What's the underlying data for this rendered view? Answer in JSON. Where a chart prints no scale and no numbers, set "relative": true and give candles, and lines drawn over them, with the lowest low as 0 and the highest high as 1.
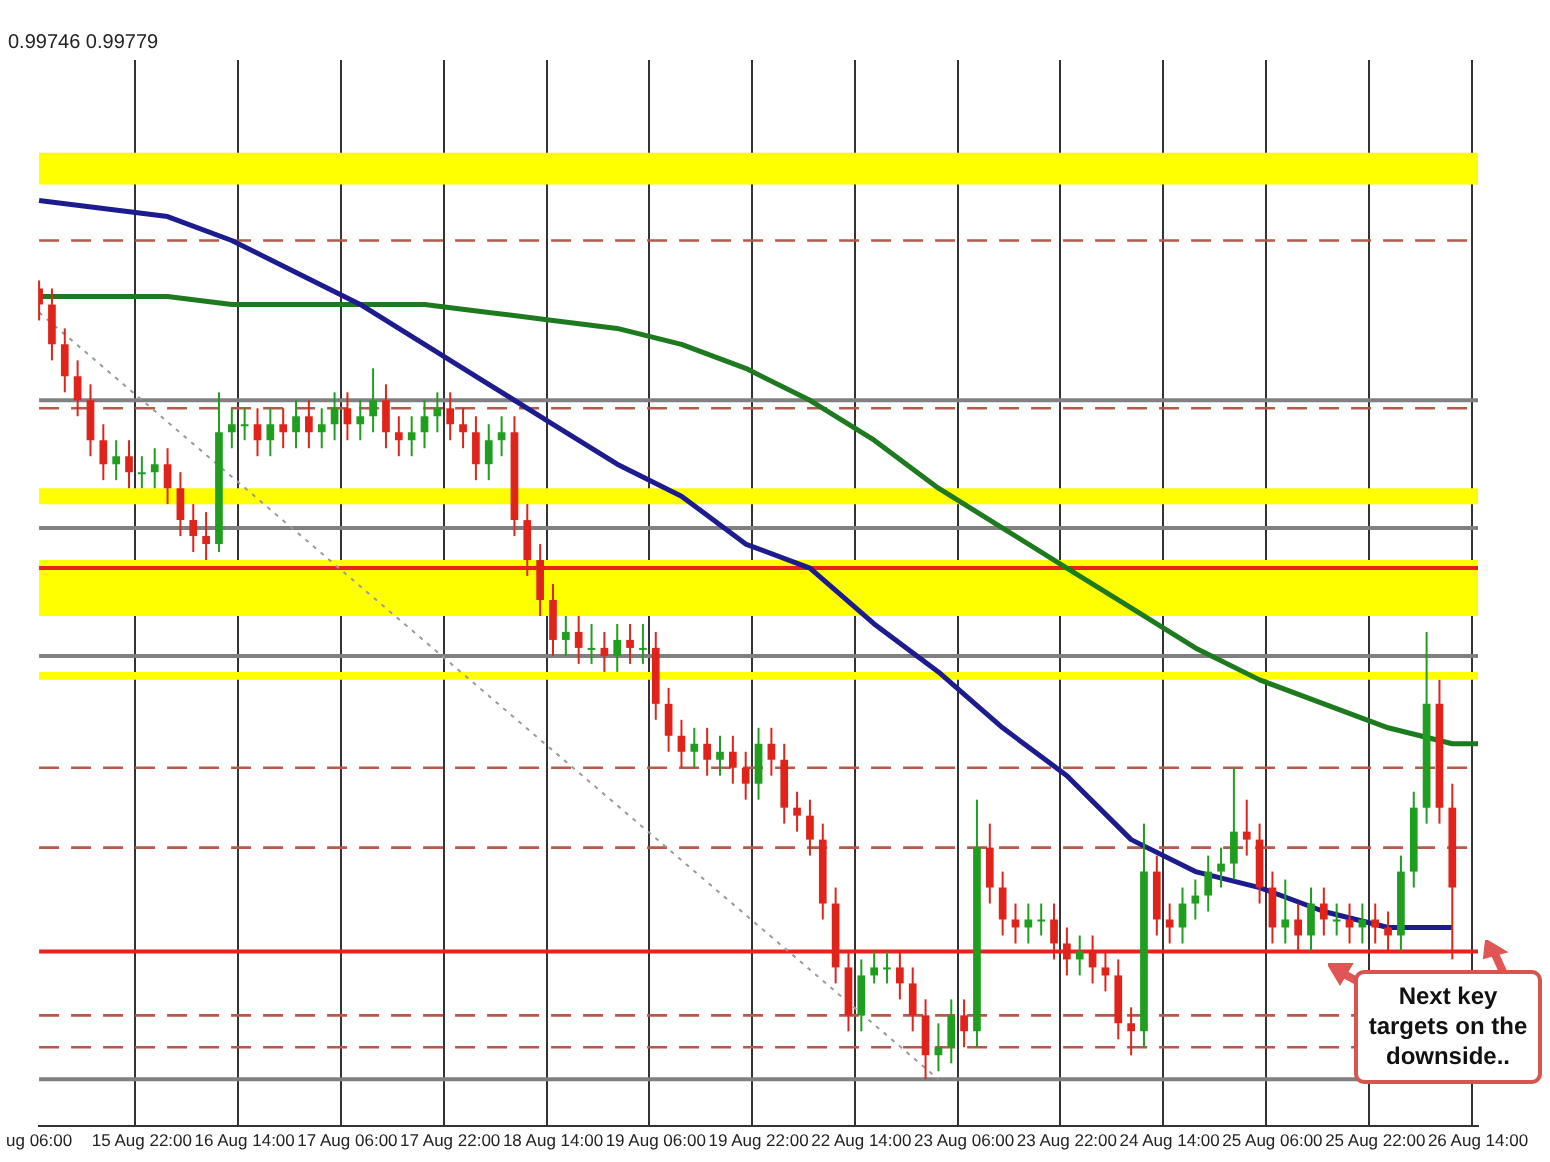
{
  "chart_data": {
    "type": "candlestick",
    "relative": true,
    "grid": "x",
    "legend": false,
    "tick_labels": "x",
    "marker": "none",
    "categories": [
      "ug 06:00",
      null,
      null,
      null,
      null,
      null,
      null,
      null,
      "15 Aug 22:00",
      null,
      null,
      null,
      null,
      null,
      null,
      null,
      "16 Aug 14:00",
      null,
      null,
      null,
      null,
      null,
      null,
      null,
      "17 Aug 06:00",
      null,
      null,
      null,
      null,
      null,
      null,
      null,
      "17 Aug 22:00",
      null,
      null,
      null,
      null,
      null,
      null,
      null,
      "18 Aug 14:00",
      null,
      null,
      null,
      null,
      null,
      null,
      null,
      "19 Aug 06:00",
      null,
      null,
      null,
      null,
      null,
      null,
      null,
      "19 Aug 22:00",
      null,
      null,
      null,
      null,
      null,
      null,
      null,
      "22 Aug 14:00",
      null,
      null,
      null,
      null,
      null,
      null,
      null,
      "23 Aug 06:00",
      null,
      null,
      null,
      null,
      null,
      null,
      null,
      "23 Aug 22:00",
      null,
      null,
      null,
      null,
      null,
      null,
      null,
      "24 Aug 14:00",
      null,
      null,
      null,
      null,
      null,
      null,
      null,
      "25 Aug 06:00",
      null,
      null,
      null,
      null,
      null,
      null,
      null,
      "25 Aug 22:00",
      null,
      null,
      null,
      null,
      null,
      null,
      null,
      "26 Aug 14:00"
    ],
    "ohlc": [
      [
        0.99,
        1.0,
        0.95,
        0.97
      ],
      [
        0.97,
        0.99,
        0.9,
        0.92
      ],
      [
        0.92,
        0.94,
        0.86,
        0.88
      ],
      [
        0.88,
        0.9,
        0.83,
        0.85
      ],
      [
        0.85,
        0.87,
        0.78,
        0.8
      ],
      [
        0.8,
        0.82,
        0.75,
        0.77
      ],
      [
        0.77,
        0.8,
        0.75,
        0.78
      ],
      [
        0.78,
        0.8,
        0.74,
        0.76
      ],
      [
        0.76,
        0.78,
        0.74,
        0.76
      ],
      [
        0.76,
        0.79,
        0.74,
        0.77
      ],
      [
        0.77,
        0.79,
        0.72,
        0.74
      ],
      [
        0.74,
        0.76,
        0.68,
        0.7
      ],
      [
        0.7,
        0.72,
        0.66,
        0.68
      ],
      [
        0.68,
        0.71,
        0.65,
        0.67
      ],
      [
        0.67,
        0.86,
        0.66,
        0.81
      ],
      [
        0.81,
        0.84,
        0.79,
        0.82
      ],
      [
        0.82,
        0.84,
        0.8,
        0.82
      ],
      [
        0.82,
        0.84,
        0.78,
        0.8
      ],
      [
        0.8,
        0.84,
        0.78,
        0.82
      ],
      [
        0.82,
        0.84,
        0.79,
        0.81
      ],
      [
        0.81,
        0.85,
        0.79,
        0.83
      ],
      [
        0.83,
        0.85,
        0.79,
        0.81
      ],
      [
        0.81,
        0.84,
        0.79,
        0.82
      ],
      [
        0.82,
        0.86,
        0.8,
        0.84
      ],
      [
        0.84,
        0.86,
        0.8,
        0.82
      ],
      [
        0.82,
        0.85,
        0.8,
        0.83
      ],
      [
        0.83,
        0.89,
        0.81,
        0.85
      ],
      [
        0.85,
        0.87,
        0.79,
        0.81
      ],
      [
        0.81,
        0.83,
        0.78,
        0.8
      ],
      [
        0.8,
        0.83,
        0.78,
        0.81
      ],
      [
        0.81,
        0.85,
        0.79,
        0.83
      ],
      [
        0.83,
        0.86,
        0.81,
        0.84
      ],
      [
        0.84,
        0.86,
        0.8,
        0.82
      ],
      [
        0.82,
        0.84,
        0.79,
        0.81
      ],
      [
        0.81,
        0.83,
        0.75,
        0.77
      ],
      [
        0.77,
        0.82,
        0.75,
        0.8
      ],
      [
        0.8,
        0.83,
        0.78,
        0.81
      ],
      [
        0.81,
        0.83,
        0.68,
        0.7
      ],
      [
        0.7,
        0.72,
        0.63,
        0.65
      ],
      [
        0.65,
        0.67,
        0.58,
        0.6
      ],
      [
        0.6,
        0.62,
        0.53,
        0.55
      ],
      [
        0.55,
        0.58,
        0.53,
        0.56
      ],
      [
        0.56,
        0.58,
        0.52,
        0.54
      ],
      [
        0.54,
        0.57,
        0.52,
        0.54
      ],
      [
        0.54,
        0.56,
        0.51,
        0.53
      ],
      [
        0.53,
        0.57,
        0.51,
        0.55
      ],
      [
        0.55,
        0.57,
        0.52,
        0.54
      ],
      [
        0.54,
        0.57,
        0.52,
        0.54
      ],
      [
        0.54,
        0.56,
        0.45,
        0.47
      ],
      [
        0.47,
        0.49,
        0.41,
        0.43
      ],
      [
        0.43,
        0.45,
        0.39,
        0.41
      ],
      [
        0.41,
        0.44,
        0.39,
        0.42
      ],
      [
        0.42,
        0.44,
        0.38,
        0.4
      ],
      [
        0.4,
        0.43,
        0.38,
        0.41
      ],
      [
        0.41,
        0.43,
        0.37,
        0.39
      ],
      [
        0.39,
        0.41,
        0.35,
        0.37
      ],
      [
        0.37,
        0.44,
        0.35,
        0.42
      ],
      [
        0.42,
        0.44,
        0.38,
        0.4
      ],
      [
        0.4,
        0.42,
        0.32,
        0.34
      ],
      [
        0.34,
        0.36,
        0.31,
        0.33
      ],
      [
        0.33,
        0.35,
        0.28,
        0.3
      ],
      [
        0.3,
        0.32,
        0.2,
        0.22
      ],
      [
        0.22,
        0.24,
        0.12,
        0.14
      ],
      [
        0.14,
        0.16,
        0.06,
        0.08
      ],
      [
        0.08,
        0.15,
        0.06,
        0.13
      ],
      [
        0.13,
        0.16,
        0.12,
        0.14
      ],
      [
        0.14,
        0.16,
        0.12,
        0.14
      ],
      [
        0.14,
        0.16,
        0.1,
        0.12
      ],
      [
        0.12,
        0.14,
        0.06,
        0.08
      ],
      [
        0.08,
        0.1,
        0.0,
        0.03
      ],
      [
        0.03,
        0.07,
        0.01,
        0.04
      ],
      [
        0.04,
        0.1,
        0.02,
        0.08
      ],
      [
        0.08,
        0.1,
        0.04,
        0.06
      ],
      [
        0.06,
        0.35,
        0.04,
        0.29
      ],
      [
        0.29,
        0.32,
        0.22,
        0.24
      ],
      [
        0.24,
        0.26,
        0.18,
        0.2
      ],
      [
        0.2,
        0.22,
        0.17,
        0.19
      ],
      [
        0.19,
        0.22,
        0.17,
        0.2
      ],
      [
        0.2,
        0.22,
        0.18,
        0.2
      ],
      [
        0.2,
        0.22,
        0.15,
        0.17
      ],
      [
        0.17,
        0.19,
        0.13,
        0.15
      ],
      [
        0.15,
        0.18,
        0.13,
        0.16
      ],
      [
        0.16,
        0.18,
        0.12,
        0.14
      ],
      [
        0.14,
        0.16,
        0.11,
        0.13
      ],
      [
        0.13,
        0.15,
        0.05,
        0.07
      ],
      [
        0.07,
        0.09,
        0.03,
        0.06
      ],
      [
        0.06,
        0.32,
        0.04,
        0.26
      ],
      [
        0.26,
        0.28,
        0.18,
        0.2
      ],
      [
        0.2,
        0.22,
        0.17,
        0.19
      ],
      [
        0.19,
        0.24,
        0.17,
        0.22
      ],
      [
        0.22,
        0.25,
        0.2,
        0.23
      ],
      [
        0.23,
        0.28,
        0.21,
        0.26
      ],
      [
        0.26,
        0.29,
        0.24,
        0.27
      ],
      [
        0.27,
        0.39,
        0.25,
        0.31
      ],
      [
        0.31,
        0.35,
        0.28,
        0.3
      ],
      [
        0.3,
        0.32,
        0.22,
        0.24
      ],
      [
        0.24,
        0.26,
        0.17,
        0.19
      ],
      [
        0.19,
        0.25,
        0.17,
        0.2
      ],
      [
        0.2,
        0.22,
        0.16,
        0.18
      ],
      [
        0.18,
        0.24,
        0.16,
        0.22
      ],
      [
        0.22,
        0.24,
        0.18,
        0.2
      ],
      [
        0.2,
        0.22,
        0.18,
        0.2
      ],
      [
        0.2,
        0.22,
        0.17,
        0.19
      ],
      [
        0.19,
        0.22,
        0.17,
        0.2
      ],
      [
        0.2,
        0.22,
        0.17,
        0.19
      ],
      [
        0.19,
        0.21,
        0.16,
        0.18
      ],
      [
        0.18,
        0.28,
        0.16,
        0.26
      ],
      [
        0.26,
        0.36,
        0.24,
        0.34
      ],
      [
        0.34,
        0.56,
        0.32,
        0.47
      ],
      [
        0.47,
        0.5,
        0.32,
        0.34
      ],
      [
        0.34,
        0.37,
        0.15,
        0.24
      ],
      null,
      null
    ],
    "series": [
      {
        "type": "line",
        "color": "#1c1c8f",
        "values": [
          1.1,
          null,
          null,
          null,
          null,
          1.09,
          null,
          null,
          null,
          null,
          1.08,
          null,
          null,
          null,
          null,
          1.05,
          null,
          null,
          null,
          null,
          1.01,
          null,
          null,
          null,
          null,
          0.97,
          null,
          null,
          null,
          null,
          0.92,
          null,
          null,
          null,
          null,
          0.87,
          null,
          null,
          null,
          null,
          0.82,
          null,
          null,
          null,
          null,
          0.77,
          null,
          null,
          null,
          null,
          0.73,
          null,
          null,
          null,
          null,
          0.67,
          null,
          null,
          null,
          null,
          0.64,
          null,
          null,
          null,
          null,
          0.57,
          null,
          null,
          null,
          null,
          0.51,
          null,
          null,
          null,
          null,
          0.44,
          null,
          null,
          null,
          null,
          0.38,
          null,
          null,
          null,
          null,
          0.3,
          null,
          null,
          null,
          null,
          0.26,
          null,
          null,
          null,
          null,
          0.24,
          null,
          null,
          null,
          null,
          0.21,
          null,
          null,
          null,
          null,
          0.19,
          null,
          null,
          null,
          null,
          0.19,
          null,
          null
        ]
      },
      {
        "type": "line",
        "color": "#1e7a1e",
        "values": [
          0.98,
          null,
          null,
          null,
          null,
          0.98,
          null,
          null,
          null,
          null,
          0.98,
          null,
          null,
          null,
          null,
          0.97,
          null,
          null,
          null,
          null,
          0.97,
          null,
          null,
          null,
          null,
          0.97,
          null,
          null,
          null,
          null,
          0.97,
          null,
          null,
          null,
          null,
          0.96,
          null,
          null,
          null,
          null,
          0.95,
          null,
          null,
          null,
          null,
          0.94,
          null,
          null,
          null,
          null,
          0.92,
          null,
          null,
          null,
          null,
          0.89,
          null,
          null,
          null,
          null,
          0.85,
          null,
          null,
          null,
          null,
          0.8,
          null,
          null,
          null,
          null,
          0.74,
          null,
          null,
          null,
          null,
          0.69,
          null,
          null,
          null,
          null,
          0.64,
          null,
          null,
          null,
          null,
          0.59,
          null,
          null,
          null,
          null,
          0.54,
          null,
          null,
          null,
          null,
          0.5,
          null,
          null,
          null,
          null,
          0.47,
          null,
          null,
          null,
          null,
          0.44,
          null,
          null,
          null,
          null,
          0.42,
          null,
          0.42
        ]
      },
      {
        "type": "line",
        "color": "#9a9a9a",
        "line_style": "dotted",
        "values": [
          0.96,
          null,
          null,
          null,
          null,
          null,
          null,
          null,
          null,
          null,
          null,
          null,
          null,
          null,
          null,
          null,
          null,
          null,
          null,
          null,
          null,
          null,
          null,
          null,
          null,
          null,
          null,
          null,
          null,
          null,
          null,
          null,
          null,
          null,
          null,
          null,
          null,
          null,
          null,
          null,
          null,
          null,
          null,
          null,
          null,
          null,
          null,
          null,
          null,
          null,
          null,
          null,
          null,
          null,
          null,
          null,
          null,
          null,
          null,
          null,
          null,
          null,
          null,
          null,
          null,
          null,
          null,
          null,
          null,
          null,
          0.0,
          null,
          null,
          null,
          null,
          null,
          null,
          null,
          null,
          null,
          null,
          null,
          null,
          null,
          null,
          null,
          null,
          null,
          null,
          null,
          null,
          null,
          null,
          null,
          null,
          null,
          null,
          null,
          null,
          null,
          null,
          null,
          null,
          null,
          null,
          null,
          null,
          null,
          null,
          null,
          null,
          null,
          null
        ]
      }
    ],
    "bands": [
      {
        "axis": "y",
        "from": 1.12,
        "to": 1.16,
        "color": "#ffff00"
      },
      {
        "axis": "y",
        "from": 0.72,
        "to": 0.74,
        "color": "#ffff00"
      },
      {
        "axis": "y",
        "from": 0.58,
        "to": 0.65,
        "color": "#ffff00"
      },
      {
        "axis": "y",
        "from": 0.5,
        "to": 0.51,
        "color": "#ffff00"
      }
    ],
    "ref_lines": [
      {
        "axis": "y",
        "value": 1.05,
        "color": "#b55a4a",
        "line_style": "dashed"
      },
      {
        "axis": "y",
        "value": 0.84,
        "color": "#b55a4a",
        "line_style": "dashed"
      },
      {
        "axis": "y",
        "value": 0.39,
        "color": "#b55a4a",
        "line_style": "dashed"
      },
      {
        "axis": "y",
        "value": 0.29,
        "color": "#b55a4a",
        "line_style": "dashed"
      },
      {
        "axis": "y",
        "value": 0.08,
        "color": "#b55a4a",
        "line_style": "dashed"
      },
      {
        "axis": "y",
        "value": 0.04,
        "color": "#b55a4a",
        "line_style": "dashed"
      },
      {
        "axis": "y",
        "value": 0.85,
        "color": "#808080",
        "line_style": "solid"
      },
      {
        "axis": "y",
        "value": 0.69,
        "color": "#808080",
        "line_style": "solid"
      },
      {
        "axis": "y",
        "value": 0.53,
        "color": "#808080",
        "line_style": "solid"
      },
      {
        "axis": "y",
        "value": 0.0,
        "color": "#808080",
        "line_style": "solid"
      },
      {
        "axis": "y",
        "value": 0.64,
        "color": "#e8231f",
        "line_style": "solid"
      },
      {
        "axis": "y",
        "value": 0.16,
        "color": "#e8231f",
        "line_style": "solid"
      }
    ],
    "annotations": [
      "0.99746 0.99779",
      {
        "text": "Next key targets on the downside..",
        "y": 0.16
      }
    ]
  }
}
